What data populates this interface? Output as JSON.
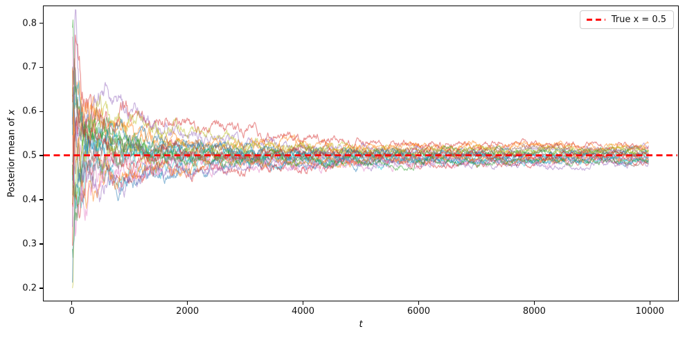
{
  "figure": {
    "background": "#ffffff",
    "xlabel": "t",
    "ylabel_prefix": "Posterior mean of ",
    "ylabel_var": "x",
    "legend": {
      "label": "True x = 0.5",
      "line_color": "#ff0000"
    }
  },
  "chart_data": {
    "type": "line",
    "title": "",
    "xlabel": "t",
    "ylabel": "Posterior mean of x",
    "xlim": [
      -500,
      10500
    ],
    "ylim": [
      0.17,
      0.84
    ],
    "xticks": [
      0,
      2000,
      4000,
      6000,
      8000,
      10000
    ],
    "yticks": [
      0.2,
      0.3,
      0.4,
      0.5,
      0.6,
      0.7,
      0.8
    ],
    "grid": false,
    "legend_position": "upper right",
    "reference_line": {
      "y": 0.5,
      "color": "#ff0000",
      "style": "dashed",
      "width": 2.8,
      "label": "True x = 0.5"
    },
    "line_alpha": 0.5,
    "line_width": 1.15,
    "noise_base": 0.115,
    "noise_decay_t": 40,
    "step": 10,
    "anchor_t": [
      0,
      50,
      150,
      300,
      600,
      1000,
      2000,
      3500,
      5500,
      8000,
      10000
    ],
    "series": [
      {
        "color": "#1f77b4",
        "seed": 11,
        "values": [
          0.45,
          0.62,
          0.55,
          0.52,
          0.5,
          0.53,
          0.515,
          0.5,
          0.505,
          0.5,
          0.497
        ]
      },
      {
        "color": "#ff7f0e",
        "seed": 12,
        "values": [
          0.7,
          0.55,
          0.58,
          0.56,
          0.55,
          0.54,
          0.52,
          0.525,
          0.52,
          0.52,
          0.515
        ]
      },
      {
        "color": "#2ca02c",
        "seed": 13,
        "values": [
          0.25,
          0.4,
          0.46,
          0.55,
          0.57,
          0.53,
          0.5,
          0.49,
          0.5,
          0.505,
          0.51
        ]
      },
      {
        "color": "#d62728",
        "seed": 14,
        "values": [
          0.3,
          0.72,
          0.62,
          0.6,
          0.585,
          0.57,
          0.565,
          0.545,
          0.527,
          0.525,
          0.52
        ]
      },
      {
        "color": "#9467bd",
        "seed": 15,
        "values": [
          0.55,
          0.78,
          0.64,
          0.62,
          0.66,
          0.6,
          0.55,
          0.52,
          0.51,
          0.515,
          0.52
        ]
      },
      {
        "color": "#8c564b",
        "seed": 16,
        "values": [
          0.62,
          0.45,
          0.48,
          0.5,
          0.52,
          0.5,
          0.49,
          0.495,
          0.49,
          0.49,
          0.487
        ]
      },
      {
        "color": "#e377c2",
        "seed": 17,
        "values": [
          0.8,
          0.6,
          0.52,
          0.48,
          0.46,
          0.47,
          0.48,
          0.475,
          0.48,
          0.485,
          0.49
        ]
      },
      {
        "color": "#7f7f7f",
        "seed": 18,
        "values": [
          0.35,
          0.5,
          0.55,
          0.52,
          0.5,
          0.51,
          0.5,
          0.505,
          0.5,
          0.497,
          0.5
        ]
      },
      {
        "color": "#bcbd22",
        "seed": 19,
        "values": [
          0.2,
          0.45,
          0.55,
          0.58,
          0.6,
          0.58,
          0.55,
          0.52,
          0.51,
          0.51,
          0.515
        ]
      },
      {
        "color": "#17becf",
        "seed": 20,
        "values": [
          0.5,
          0.35,
          0.42,
          0.45,
          0.46,
          0.47,
          0.48,
          0.49,
          0.49,
          0.49,
          0.492
        ]
      },
      {
        "color": "#1f77b4",
        "seed": 21,
        "values": [
          0.65,
          0.55,
          0.5,
          0.47,
          0.45,
          0.46,
          0.47,
          0.48,
          0.485,
          0.487,
          0.485
        ]
      },
      {
        "color": "#ff7f0e",
        "seed": 22,
        "values": [
          0.4,
          0.58,
          0.62,
          0.58,
          0.55,
          0.545,
          0.53,
          0.52,
          0.515,
          0.52,
          0.52
        ]
      },
      {
        "color": "#2ca02c",
        "seed": 23,
        "values": [
          0.75,
          0.65,
          0.58,
          0.54,
          0.52,
          0.5,
          0.49,
          0.5,
          0.51,
          0.507,
          0.505
        ]
      },
      {
        "color": "#d62728",
        "seed": 24,
        "values": [
          0.55,
          0.4,
          0.44,
          0.46,
          0.48,
          0.47,
          0.46,
          0.475,
          0.48,
          0.483,
          0.487
        ]
      },
      {
        "color": "#9467bd",
        "seed": 25,
        "values": [
          0.3,
          0.55,
          0.48,
          0.44,
          0.43,
          0.45,
          0.47,
          0.48,
          0.485,
          0.48,
          0.482
        ]
      },
      {
        "color": "#8c564b",
        "seed": 26,
        "values": [
          0.6,
          0.7,
          0.6,
          0.56,
          0.54,
          0.52,
          0.51,
          0.51,
          0.505,
          0.51,
          0.512
        ]
      },
      {
        "color": "#e377c2",
        "seed": 27,
        "values": [
          0.45,
          0.3,
          0.4,
          0.44,
          0.47,
          0.48,
          0.49,
          0.485,
          0.49,
          0.492,
          0.49
        ]
      },
      {
        "color": "#7f7f7f",
        "seed": 28,
        "values": [
          0.72,
          0.58,
          0.54,
          0.5,
          0.49,
          0.5,
          0.51,
          0.505,
          0.5,
          0.502,
          0.5
        ]
      },
      {
        "color": "#bcbd22",
        "seed": 29,
        "values": [
          0.35,
          0.52,
          0.56,
          0.54,
          0.52,
          0.53,
          0.52,
          0.515,
          0.51,
          0.508,
          0.51
        ]
      },
      {
        "color": "#17becf",
        "seed": 30,
        "values": [
          0.58,
          0.66,
          0.58,
          0.55,
          0.53,
          0.51,
          0.5,
          0.495,
          0.49,
          0.49,
          0.49
        ]
      },
      {
        "color": "#1f77b4",
        "seed": 31,
        "values": [
          0.25,
          0.42,
          0.5,
          0.53,
          0.55,
          0.54,
          0.525,
          0.51,
          0.5,
          0.5,
          0.502
        ]
      },
      {
        "color": "#ff7f0e",
        "seed": 32,
        "values": [
          0.68,
          0.52,
          0.46,
          0.44,
          0.45,
          0.46,
          0.475,
          0.48,
          0.49,
          0.493,
          0.495
        ]
      },
      {
        "color": "#2ca02c",
        "seed": 33,
        "values": [
          0.52,
          0.44,
          0.5,
          0.55,
          0.54,
          0.52,
          0.5,
          0.49,
          0.485,
          0.487,
          0.49
        ]
      },
      {
        "color": "#d62728",
        "seed": 34,
        "values": [
          0.38,
          0.6,
          0.56,
          0.52,
          0.51,
          0.5,
          0.495,
          0.5,
          0.505,
          0.5,
          0.498
        ]
      }
    ]
  }
}
